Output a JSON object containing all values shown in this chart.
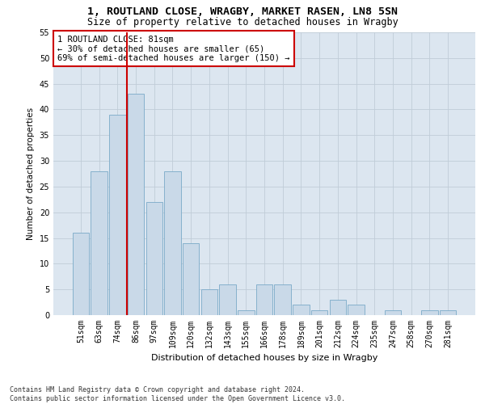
{
  "title1": "1, ROUTLAND CLOSE, WRAGBY, MARKET RASEN, LN8 5SN",
  "title2": "Size of property relative to detached houses in Wragby",
  "xlabel": "Distribution of detached houses by size in Wragby",
  "ylabel": "Number of detached properties",
  "categories": [
    "51sqm",
    "63sqm",
    "74sqm",
    "86sqm",
    "97sqm",
    "109sqm",
    "120sqm",
    "132sqm",
    "143sqm",
    "155sqm",
    "166sqm",
    "178sqm",
    "189sqm",
    "201sqm",
    "212sqm",
    "224sqm",
    "235sqm",
    "247sqm",
    "258sqm",
    "270sqm",
    "281sqm"
  ],
  "values": [
    16,
    28,
    39,
    43,
    22,
    28,
    14,
    5,
    6,
    1,
    6,
    6,
    2,
    1,
    3,
    2,
    0,
    1,
    0,
    1,
    1
  ],
  "bar_color": "#c9d9e8",
  "bar_edge_color": "#7aaac8",
  "vline_x": 2.5,
  "vline_color": "#cc0000",
  "annotation_text": "1 ROUTLAND CLOSE: 81sqm\n← 30% of detached houses are smaller (65)\n69% of semi-detached houses are larger (150) →",
  "annotation_box_color": "#ffffff",
  "annotation_box_edge": "#cc0000",
  "ylim": [
    0,
    55
  ],
  "yticks": [
    0,
    5,
    10,
    15,
    20,
    25,
    30,
    35,
    40,
    45,
    50,
    55
  ],
  "grid_color": "#c0ccd8",
  "background_color": "#dce6f0",
  "footnote": "Contains HM Land Registry data © Crown copyright and database right 2024.\nContains public sector information licensed under the Open Government Licence v3.0.",
  "title1_fontsize": 9.5,
  "title2_fontsize": 8.5,
  "xlabel_fontsize": 8,
  "ylabel_fontsize": 7.5,
  "tick_fontsize": 7,
  "annot_fontsize": 7.5,
  "footnote_fontsize": 6
}
